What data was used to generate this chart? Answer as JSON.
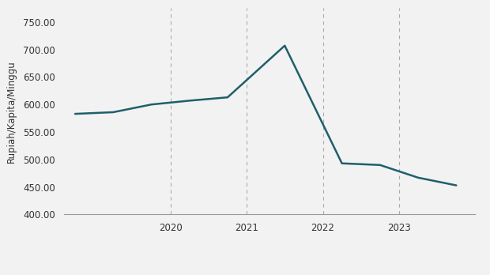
{
  "x": [
    2018.75,
    2019.25,
    2019.75,
    2020.25,
    2020.75,
    2021.5,
    2022.25,
    2022.75,
    2023.25,
    2023.75
  ],
  "y": [
    583.0,
    586.0,
    600.0,
    607.0,
    613.0,
    707.0,
    493.0,
    490.0,
    467.0,
    453.0
  ],
  "line_color": "#1f5f6b",
  "line_width": 1.8,
  "ylabel": "Rupiah/Kapita/Minggu",
  "ylim": [
    400,
    775
  ],
  "yticks": [
    400.0,
    450.0,
    500.0,
    550.0,
    600.0,
    650.0,
    700.0,
    750.0
  ],
  "xlim": [
    2018.6,
    2024.0
  ],
  "xticks": [
    2020.0,
    2021.0,
    2022.0,
    2023.0
  ],
  "xticklabels": [
    "2020",
    "2021",
    "2022",
    "2023"
  ],
  "grid_color": "#aaaaaa",
  "bg_color": "#f2f2f2",
  "legend_line_color": "#1f5f6b",
  "tick_color": "#333333",
  "ylabel_color": "#333333"
}
